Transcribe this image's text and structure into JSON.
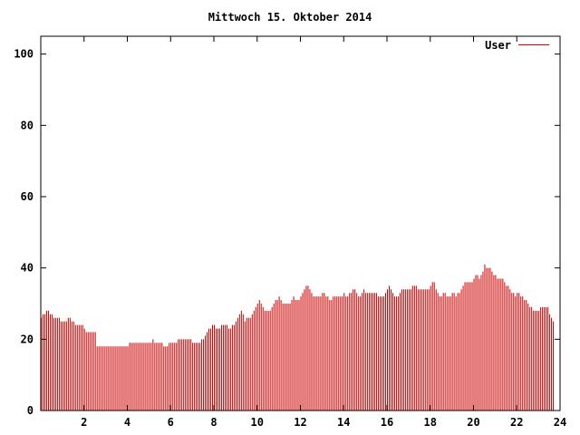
{
  "chart_data": {
    "type": "bar",
    "title": "Mittwoch 15. Oktober 2014",
    "xlabel": "",
    "ylabel": "",
    "xlim": [
      0,
      24
    ],
    "ylim": [
      0,
      105
    ],
    "x_ticks": [
      2,
      4,
      6,
      8,
      10,
      12,
      14,
      16,
      18,
      20,
      22,
      24
    ],
    "y_ticks": [
      0,
      20,
      40,
      60,
      80,
      100
    ],
    "grid": false,
    "legend": "top-right",
    "series": [
      {
        "name": "User",
        "color": "#cc0000",
        "x_start": 0,
        "x_step": 0.0833333,
        "values": [
          26,
          27,
          27,
          28,
          28,
          27,
          27,
          26,
          26,
          26,
          26,
          25,
          25,
          25,
          25,
          26,
          26,
          25,
          25,
          24,
          24,
          24,
          24,
          24,
          23,
          22,
          22,
          22,
          22,
          22,
          22,
          18,
          18,
          18,
          18,
          18,
          18,
          18,
          18,
          18,
          18,
          18,
          18,
          18,
          18,
          18,
          18,
          18,
          18,
          19,
          19,
          19,
          19,
          19,
          19,
          19,
          19,
          19,
          19,
          19,
          19,
          19,
          20,
          19,
          19,
          19,
          19,
          19,
          18,
          18,
          18,
          19,
          19,
          19,
          19,
          19,
          20,
          20,
          20,
          20,
          20,
          20,
          20,
          20,
          19,
          19,
          19,
          19,
          19,
          20,
          20,
          21,
          22,
          23,
          23,
          24,
          24,
          23,
          23,
          23,
          24,
          24,
          24,
          24,
          23,
          23,
          24,
          24,
          25,
          26,
          27,
          28,
          27,
          25,
          26,
          26,
          26,
          27,
          28,
          29,
          30,
          31,
          30,
          29,
          28,
          28,
          28,
          28,
          29,
          30,
          31,
          31,
          32,
          31,
          30,
          30,
          30,
          30,
          30,
          31,
          32,
          31,
          31,
          31,
          32,
          33,
          34,
          35,
          35,
          34,
          33,
          32,
          32,
          32,
          32,
          32,
          33,
          33,
          32,
          32,
          31,
          31,
          32,
          32,
          32,
          32,
          32,
          32,
          33,
          32,
          32,
          33,
          33,
          34,
          34,
          33,
          32,
          32,
          33,
          34,
          33,
          33,
          33,
          33,
          33,
          33,
          33,
          32,
          32,
          32,
          32,
          33,
          34,
          35,
          34,
          33,
          32,
          32,
          32,
          33,
          34,
          34,
          34,
          34,
          34,
          34,
          35,
          35,
          35,
          34,
          34,
          34,
          34,
          34,
          34,
          34,
          35,
          36,
          36,
          34,
          33,
          32,
          32,
          33,
          33,
          32,
          32,
          32,
          33,
          33,
          32,
          33,
          33,
          34,
          35,
          36,
          36,
          36,
          36,
          36,
          37,
          38,
          38,
          37,
          38,
          39,
          41,
          40,
          40,
          40,
          39,
          38,
          38,
          37,
          37,
          37,
          37,
          36,
          35,
          35,
          34,
          33,
          33,
          32,
          33,
          33,
          32,
          32,
          31,
          31,
          30,
          29,
          29,
          28,
          28,
          28,
          28,
          29,
          29,
          29,
          29,
          29,
          27,
          26,
          25
        ]
      }
    ]
  }
}
